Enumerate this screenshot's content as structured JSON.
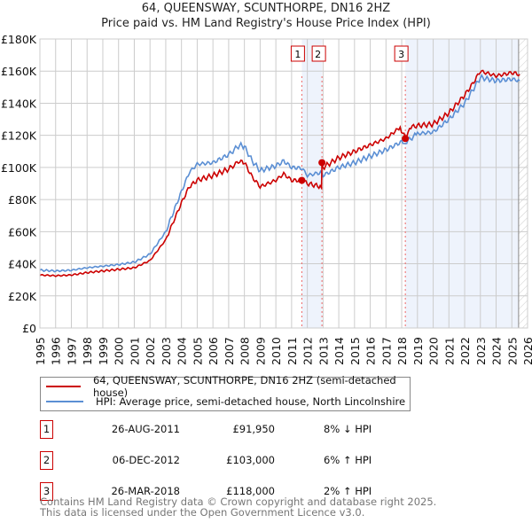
{
  "chart_data": {
    "type": "line",
    "title": "64, QUEENSWAY, SCUNTHORPE, DN16 2HZ",
    "subtitle": "Price paid vs. HM Land Registry's House Price Index (HPI)",
    "xlim": [
      1995,
      2026
    ],
    "ylim": [
      0,
      180000
    ],
    "y_ticks": [
      {
        "v": 0,
        "label": "£0"
      },
      {
        "v": 20000,
        "label": "£20K"
      },
      {
        "v": 40000,
        "label": "£40K"
      },
      {
        "v": 60000,
        "label": "£60K"
      },
      {
        "v": 80000,
        "label": "£80K"
      },
      {
        "v": 100000,
        "label": "£100K"
      },
      {
        "v": 120000,
        "label": "£120K"
      },
      {
        "v": 140000,
        "label": "£140K"
      },
      {
        "v": 160000,
        "label": "£160K"
      },
      {
        "v": 180000,
        "label": "£180K"
      }
    ],
    "x_ticks": [
      "1995",
      "1996",
      "1997",
      "1998",
      "1999",
      "2000",
      "2001",
      "2002",
      "2003",
      "2004",
      "2005",
      "2006",
      "2007",
      "2008",
      "2009",
      "2010",
      "2011",
      "2012",
      "2013",
      "2014",
      "2015",
      "2016",
      "2017",
      "2018",
      "2019",
      "2020",
      "2021",
      "2022",
      "2023",
      "2024",
      "2025",
      "2026"
    ],
    "grid": true,
    "forecast_from": 2025.43,
    "series": [
      {
        "name": "64, QUEENSWAY, SCUNTHORPE, DN16 2HZ (semi-detached house)",
        "color": "#cc0000",
        "points": [
          [
            1995,
            33
          ],
          [
            1996,
            32.5
          ],
          [
            1997,
            33
          ],
          [
            1998,
            34.5
          ],
          [
            1999,
            35.5
          ],
          [
            2000,
            36.5
          ],
          [
            2001,
            37.5
          ],
          [
            2002,
            42
          ],
          [
            2003,
            55
          ],
          [
            2004,
            78
          ],
          [
            2004.5,
            88
          ],
          [
            2005,
            92
          ],
          [
            2006,
            95
          ],
          [
            2007,
            99
          ],
          [
            2007.7,
            104
          ],
          [
            2008,
            103
          ],
          [
            2008.5,
            94
          ],
          [
            2009,
            88
          ],
          [
            2010,
            92
          ],
          [
            2010.5,
            96
          ],
          [
            2011,
            92
          ],
          [
            2011.65,
            91.95
          ],
          [
            2012,
            90
          ],
          [
            2012.9,
            88
          ],
          [
            2012.93,
            103
          ],
          [
            2013,
            100
          ],
          [
            2014,
            106
          ],
          [
            2015,
            110
          ],
          [
            2016,
            114
          ],
          [
            2017,
            118
          ],
          [
            2017.9,
            125
          ],
          [
            2018.23,
            118
          ],
          [
            2018.5,
            125
          ],
          [
            2019,
            126
          ],
          [
            2020,
            127
          ],
          [
            2021,
            134
          ],
          [
            2022,
            145
          ],
          [
            2022.5,
            152
          ],
          [
            2023,
            160
          ],
          [
            2024,
            157
          ],
          [
            2025,
            159
          ],
          [
            2025.5,
            158
          ]
        ]
      },
      {
        "name": "HPI: Average price, semi-detached house, North Lincolnshire",
        "color": "#5b8fd4",
        "points": [
          [
            1995,
            36
          ],
          [
            1996,
            35.5
          ],
          [
            1997,
            36
          ],
          [
            1998,
            37.5
          ],
          [
            1999,
            38.5
          ],
          [
            2000,
            39.5
          ],
          [
            2001,
            41
          ],
          [
            2002,
            46
          ],
          [
            2003,
            60
          ],
          [
            2004,
            85
          ],
          [
            2004.5,
            97
          ],
          [
            2005,
            102
          ],
          [
            2006,
            103
          ],
          [
            2007,
            108
          ],
          [
            2007.7,
            114
          ],
          [
            2008,
            113
          ],
          [
            2008.5,
            104
          ],
          [
            2009,
            98
          ],
          [
            2010,
            101
          ],
          [
            2010.5,
            104
          ],
          [
            2011,
            100
          ],
          [
            2011.65,
            99.5
          ],
          [
            2012,
            95
          ],
          [
            2012.93,
            97
          ],
          [
            2013,
            95
          ],
          [
            2014,
            100
          ],
          [
            2015,
            103
          ],
          [
            2016,
            107
          ],
          [
            2017,
            111
          ],
          [
            2018,
            116
          ],
          [
            2018.23,
            115.5
          ],
          [
            2019,
            121
          ],
          [
            2020,
            122
          ],
          [
            2021,
            130
          ],
          [
            2022,
            140
          ],
          [
            2022.5,
            148
          ],
          [
            2023,
            156
          ],
          [
            2024,
            154
          ],
          [
            2025,
            155
          ],
          [
            2025.5,
            154
          ]
        ]
      }
    ],
    "sales": [
      {
        "n": "1",
        "year": 2011.65,
        "value": 91950,
        "date": "26-AUG-2011",
        "price": "£91,950",
        "hpi": "8% ↓ HPI"
      },
      {
        "n": "2",
        "year": 2012.93,
        "value": 103000,
        "date": "06-DEC-2012",
        "price": "£103,000",
        "hpi": "6% ↑ HPI"
      },
      {
        "n": "3",
        "year": 2018.23,
        "value": 118000,
        "date": "26-MAR-2018",
        "price": "£118,000",
        "hpi": "2% ↑ HPI"
      }
    ]
  },
  "legend": {
    "red": "64, QUEENSWAY, SCUNTHORPE, DN16 2HZ (semi-detached house)",
    "blue": "HPI: Average price, semi-detached house, North Lincolnshire"
  },
  "footer": {
    "line1": "Contains HM Land Registry data © Crown copyright and database right 2025.",
    "line2": "This data is licensed under the Open Government Licence v3.0."
  }
}
